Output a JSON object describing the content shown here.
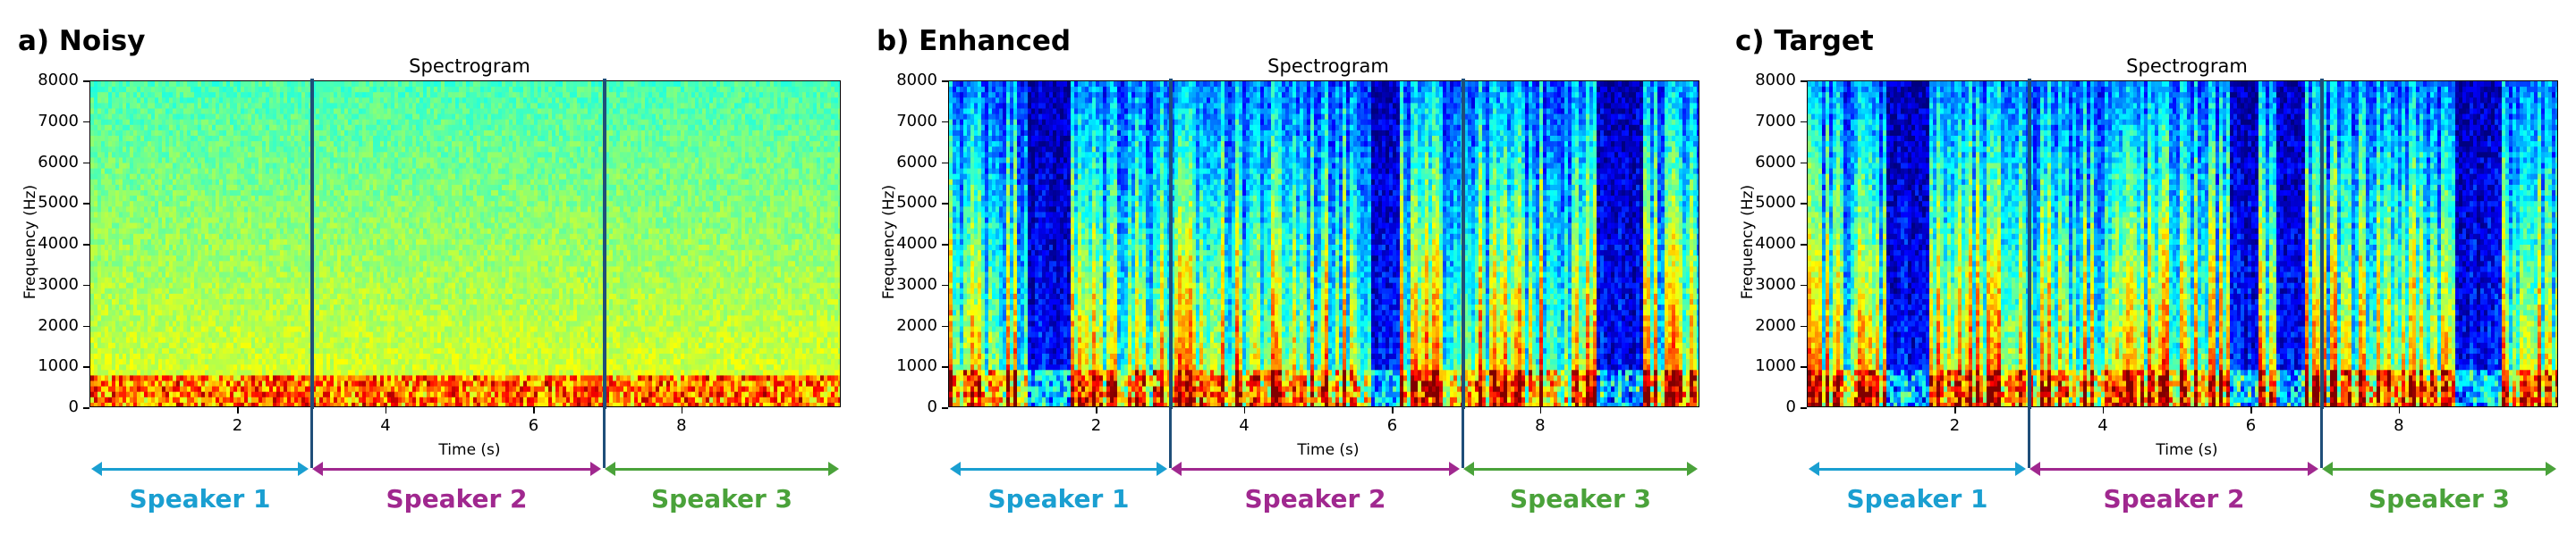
{
  "panels": [
    {
      "label": "a) Noisy",
      "title": "Spectrogram"
    },
    {
      "label": "b) Enhanced",
      "title": "Spectrogram"
    },
    {
      "label": "c) Target",
      "title": "Spectrogram"
    }
  ],
  "axis": {
    "ylabel": "Frequency (Hz)",
    "xlabel": "Time (s)",
    "yticks": [
      "0",
      "1000",
      "2000",
      "3000",
      "4000",
      "5000",
      "6000",
      "7000",
      "8000"
    ],
    "xticks": [
      "2",
      "4",
      "6",
      "8"
    ]
  },
  "speakers": [
    {
      "label": "Speaker 1",
      "color": "#1a9fd1"
    },
    {
      "label": "Speaker 2",
      "color": "#a0288f"
    },
    {
      "label": "Speaker 3",
      "color": "#4aa23a"
    }
  ],
  "chart_data": [
    {
      "type": "heatmap",
      "title": "Spectrogram",
      "xlabel": "Time (s)",
      "ylabel": "Frequency (Hz)",
      "xlim": [
        0,
        10
      ],
      "ylim": [
        0,
        8000
      ],
      "colormap": "jet",
      "speaker_segments_s": [
        [
          0,
          2.9
        ],
        [
          2.9,
          6.8
        ],
        [
          6.8,
          10
        ]
      ],
      "segment_boundaries_s": [
        2.9,
        6.8
      ]
    },
    {
      "type": "heatmap",
      "title": "Spectrogram",
      "xlabel": "Time (s)",
      "ylabel": "Frequency (Hz)",
      "xlim": [
        0,
        10
      ],
      "ylim": [
        0,
        8000
      ],
      "colormap": "jet",
      "speaker_segments_s": [
        [
          0,
          2.9
        ],
        [
          2.9,
          6.8
        ],
        [
          6.8,
          10
        ]
      ],
      "segment_boundaries_s": [
        2.9,
        6.8
      ]
    },
    {
      "type": "heatmap",
      "title": "Spectrogram",
      "xlabel": "Time (s)",
      "ylabel": "Frequency (Hz)",
      "xlim": [
        0,
        10
      ],
      "ylim": [
        0,
        8000
      ],
      "colormap": "jet",
      "speaker_segments_s": [
        [
          0,
          2.9
        ],
        [
          2.9,
          6.8
        ],
        [
          6.8,
          10
        ]
      ],
      "segment_boundaries_s": [
        2.9,
        6.8
      ]
    }
  ]
}
